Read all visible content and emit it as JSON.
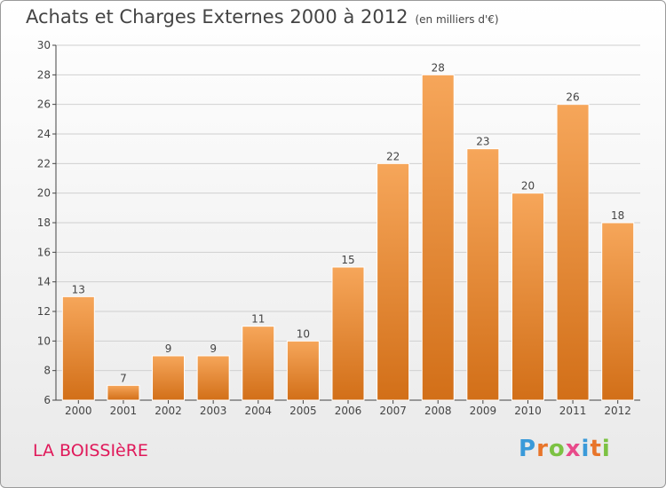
{
  "title": {
    "main": "Achats et Charges Externes 2000 à 2012",
    "unit": "(en milliers d'€)"
  },
  "place": "LA BOISSIèRE",
  "logo": {
    "letters": [
      "P",
      "r",
      "o",
      "x",
      "i",
      "t",
      "i"
    ],
    "colors": [
      "#3a9ad9",
      "#e8752a",
      "#7cc243",
      "#e84a8a",
      "#3a9ad9",
      "#e8752a",
      "#7cc243"
    ]
  },
  "colors": {
    "bar_top": "#f6a65a",
    "bar_bottom": "#d26f18",
    "axis": "#444444",
    "grid": "#d0d0d0"
  },
  "chart_data": {
    "type": "bar",
    "title": "Achats et Charges Externes 2000 à 2012",
    "xlabel": "",
    "ylabel": "",
    "categories": [
      "2000",
      "2001",
      "2002",
      "2003",
      "2004",
      "2005",
      "2006",
      "2007",
      "2008",
      "2009",
      "2010",
      "2011",
      "2012"
    ],
    "values": [
      13,
      7,
      9,
      9,
      11,
      10,
      15,
      22,
      28,
      23,
      20,
      26,
      18
    ],
    "ylim": [
      6,
      30
    ],
    "yticks": [
      6,
      8,
      10,
      12,
      14,
      16,
      18,
      20,
      22,
      24,
      26,
      28,
      30
    ],
    "grid": true,
    "legend": "none"
  }
}
